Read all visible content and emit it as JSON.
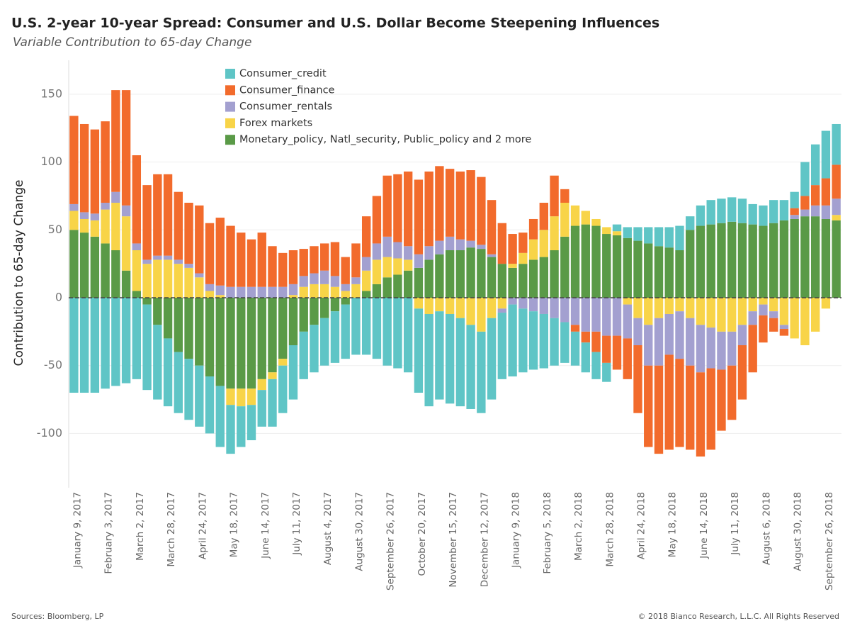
{
  "chart_data": {
    "type": "stacked_bar",
    "title": "U.S. 2-year 10-year Spread: Consumer and U.S. Dollar Become Steepening Influences",
    "subtitle": "Variable Contribution to 65-day Change",
    "y_label": "Contribution to 65-day Change",
    "source": "Sources: Bloomberg, LP",
    "copyright": "© 2018 Bianco Research, L.L.C. All Rights Reserved",
    "categories": [
      "January 9, 2017",
      null,
      null,
      "February 3, 2017",
      null,
      null,
      "March 2, 2017",
      null,
      null,
      "March 28, 2017",
      null,
      null,
      "April 24, 2017",
      null,
      null,
      "May 18, 2017",
      null,
      null,
      "June 14, 2017",
      null,
      null,
      "July 11, 2017",
      null,
      null,
      "August 4, 2017",
      null,
      null,
      "August 30, 2017",
      null,
      null,
      "September 26, 2017",
      null,
      null,
      "October 20, 2017",
      null,
      null,
      "November 15, 2017",
      null,
      null,
      "December 12, 2017",
      null,
      null,
      "January 9, 2018",
      null,
      null,
      "February 5, 2018",
      null,
      null,
      "March 2, 2018",
      null,
      null,
      "March 28, 2018",
      null,
      null,
      "April 24, 2018",
      null,
      null,
      "May 18, 2018",
      null,
      null,
      "June 14, 2018",
      null,
      null,
      "July 11, 2018",
      null,
      null,
      "August 6, 2018",
      null,
      null,
      "August 30, 2018",
      null,
      null,
      "September 26, 2018",
      null
    ],
    "series": [
      {
        "name": "Consumer_credit",
        "color": "#5fc5c6",
        "values": [
          -70,
          -70,
          -70,
          -67,
          -65,
          -63,
          -60,
          -63,
          -55,
          -50,
          -45,
          -45,
          -45,
          -42,
          -45,
          -36,
          -30,
          -26,
          -27,
          -35,
          -35,
          -40,
          -35,
          -35,
          -35,
          -38,
          -40,
          -42,
          -42,
          -45,
          -50,
          -52,
          -55,
          -62,
          -68,
          -65,
          -66,
          -65,
          -62,
          -60,
          -60,
          -49,
          -53,
          -47,
          -43,
          -40,
          -35,
          -30,
          -25,
          -22,
          -20,
          -14,
          5,
          8,
          10,
          12,
          14,
          15,
          18,
          10,
          15,
          18,
          18,
          18,
          18,
          15,
          15,
          17,
          15,
          12,
          25,
          30,
          35,
          30
        ]
      },
      {
        "name": "Consumer_finance",
        "color": "#f26b2c",
        "values": [
          65,
          65,
          62,
          60,
          75,
          85,
          65,
          55,
          60,
          60,
          50,
          45,
          50,
          45,
          50,
          45,
          40,
          35,
          40,
          30,
          25,
          25,
          20,
          20,
          20,
          25,
          20,
          25,
          30,
          35,
          45,
          50,
          55,
          55,
          55,
          55,
          50,
          50,
          52,
          50,
          40,
          30,
          22,
          15,
          15,
          20,
          30,
          10,
          -5,
          -8,
          -15,
          -20,
          -25,
          -30,
          -50,
          -60,
          -65,
          -70,
          -65,
          -62,
          -62,
          -60,
          -45,
          -40,
          -40,
          -35,
          -20,
          -10,
          -5,
          5,
          10,
          15,
          20,
          25
        ]
      },
      {
        "name": "Consumer_rentals",
        "color": "#a3a0d0",
        "values": [
          5,
          5,
          5,
          5,
          8,
          8,
          5,
          3,
          3,
          3,
          3,
          3,
          3,
          5,
          7,
          8,
          8,
          8,
          8,
          8,
          8,
          8,
          8,
          8,
          10,
          8,
          5,
          5,
          10,
          12,
          15,
          12,
          10,
          10,
          10,
          10,
          10,
          8,
          5,
          3,
          2,
          -3,
          -5,
          -8,
          -10,
          -12,
          -15,
          -18,
          -20,
          -25,
          -25,
          -28,
          -28,
          -25,
          -20,
          -30,
          -35,
          -30,
          -35,
          -35,
          -35,
          -30,
          -28,
          -25,
          -15,
          -10,
          -8,
          -5,
          -3,
          3,
          5,
          8,
          10,
          12
        ]
      },
      {
        "name": "Forex markets",
        "color": "#f8d448",
        "values": [
          14,
          10,
          12,
          25,
          35,
          40,
          30,
          25,
          28,
          28,
          25,
          22,
          15,
          5,
          2,
          -12,
          -13,
          -12,
          -8,
          -5,
          -5,
          2,
          8,
          10,
          10,
          8,
          5,
          10,
          15,
          18,
          15,
          12,
          8,
          -8,
          -12,
          -10,
          -12,
          -15,
          -20,
          -25,
          -15,
          -8,
          3,
          8,
          15,
          20,
          25,
          25,
          15,
          10,
          5,
          5,
          3,
          -5,
          -15,
          -20,
          -15,
          -12,
          -10,
          -15,
          -20,
          -22,
          -25,
          -25,
          -20,
          -10,
          -5,
          -10,
          -20,
          -30,
          -35,
          -25,
          -8,
          4
        ]
      },
      {
        "name": "Monetary_policy, Natl_security, Public_policy and 2 more",
        "color": "#5a9a47",
        "values": [
          50,
          48,
          45,
          40,
          35,
          20,
          5,
          -5,
          -20,
          -30,
          -40,
          -45,
          -50,
          -58,
          -65,
          -67,
          -67,
          -67,
          -60,
          -55,
          -45,
          -35,
          -25,
          -20,
          -15,
          -10,
          -5,
          0,
          5,
          10,
          15,
          17,
          20,
          22,
          28,
          32,
          35,
          35,
          37,
          36,
          30,
          25,
          22,
          25,
          28,
          30,
          35,
          45,
          53,
          54,
          53,
          47,
          46,
          44,
          42,
          40,
          38,
          37,
          35,
          50,
          53,
          54,
          55,
          56,
          55,
          54,
          53,
          55,
          57,
          58,
          60,
          60,
          58,
          57
        ]
      }
    ],
    "ylim": [
      -140,
      175
    ],
    "yticks": [
      -100,
      -50,
      0,
      50,
      100,
      150
    ],
    "grid": true
  }
}
